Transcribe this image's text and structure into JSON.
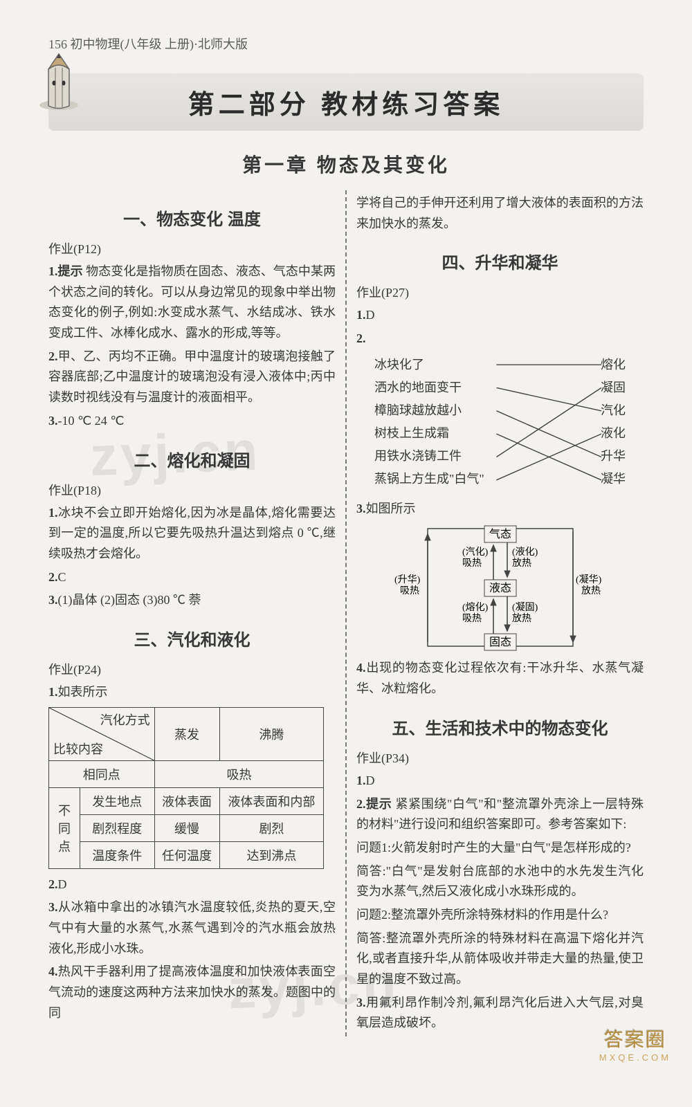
{
  "header": "156 初中物理(八年级 上册)·北师大版",
  "part_banner": "第二部分 教材练习答案",
  "chapter_title": "第一章 物态及其变化",
  "banner_icon_pencil_color": "#c2a77a",
  "banner_icon_body_color": "#ded9cf",
  "left": {
    "s1": {
      "title": "一、物态变化 温度",
      "hw": "作业(P12)",
      "q1_lead": "1.提示",
      "q1": " 物态变化是指物质在固态、液态、气态中某两个状态之间的转化。可以从身边常见的现象中举出物态变化的例子,例如:水变成水蒸气、水结成冰、铁水变成工件、冰棒化成水、露水的形成,等等。",
      "q2_lead": "2.",
      "q2": "甲、乙、丙均不正确。甲中温度计的玻璃泡接触了容器底部;乙中温度计的玻璃泡没有浸入液体中;丙中读数时视线没有与温度计的液面相平。",
      "q3_lead": "3.",
      "q3": "-10 ℃ 24 ℃"
    },
    "s2": {
      "title": "二、熔化和凝固",
      "hw": "作业(P18)",
      "q1_lead": "1.",
      "q1": "冰块不会立即开始熔化,因为冰是晶体,熔化需要达到一定的温度,所以它要先吸热升温达到熔点 0 ℃,继续吸热才会熔化。",
      "q2_lead": "2.",
      "q2": "C",
      "q3_lead": "3.",
      "q3": "(1)晶体 (2)固态 (3)80 ℃ 萘"
    },
    "s3": {
      "title": "三、汽化和液化",
      "hw": "作业(P24)",
      "q1_lead": "1.",
      "q1": "如表所示",
      "table": {
        "diag_top": "汽化方式",
        "diag_bot": "比较内容",
        "c1": "蒸发",
        "c2": "沸腾",
        "r1": "相同点",
        "r1v": "吸热",
        "dif": "不同点",
        "r2": "发生地点",
        "r2a": "液体表面",
        "r2b": "液体表面和内部",
        "r3": "剧烈程度",
        "r3a": "缓慢",
        "r3b": "剧烈",
        "r4": "温度条件",
        "r4a": "任何温度",
        "r4b": "达到沸点"
      },
      "q2_lead": "2.",
      "q2": "D",
      "q3_lead": "3.",
      "q3": "从冰箱中拿出的冰镇汽水温度较低,炎热的夏天,空气中有大量的水蒸气,水蒸气遇到冷的汽水瓶会放热液化,形成小水珠。",
      "q4_lead": "4.",
      "q4": "热风干手器利用了提高液体温度和加快液体表面空气流动的速度这两种方法来加快水的蒸发。题图中的同"
    }
  },
  "right": {
    "cont": "学将自己的手伸开还利用了增大液体的表面积的方法来加快水的蒸发。",
    "s4": {
      "title": "四、升华和凝华",
      "hw": "作业(P27)",
      "q1_lead": "1.",
      "q1": "D",
      "q2_lead": "2.",
      "match_left": [
        "冰块化了",
        "洒水的地面变干",
        "樟脑球越放越小",
        "树枝上生成霜",
        "用铁水浇铸工件",
        "蒸锅上方生成\"白气\""
      ],
      "match_right": [
        "熔化",
        "凝固",
        "汽化",
        "液化",
        "升华",
        "凝华"
      ],
      "match_lines": [
        {
          "l": 0,
          "r": 0
        },
        {
          "l": 1,
          "r": 2
        },
        {
          "l": 2,
          "r": 4
        },
        {
          "l": 3,
          "r": 5
        },
        {
          "l": 4,
          "r": 1
        },
        {
          "l": 5,
          "r": 3
        }
      ],
      "q3_lead": "3.",
      "q3": "如图所示",
      "diagram": {
        "gas": "气态",
        "liquid": "液态",
        "solid": "固态",
        "vaporize": "(汽化)",
        "liquefy": "(液化)",
        "melt": "(熔化)",
        "freeze": "(凝固)",
        "sublim": "(升华)",
        "deposit": "(凝华)",
        "absorb": "吸热",
        "release": "放热"
      },
      "q4_lead": "4.",
      "q4": "出现的物态变化过程依次有:干冰升华、水蒸气凝华、冰粒熔化。"
    },
    "s5": {
      "title": "五、生活和技术中的物态变化",
      "hw": "作业(P34)",
      "q1_lead": "1.",
      "q1": "D",
      "q2_lead": "2.提示",
      "q2": " 紧紧围绕\"白气\"和\"整流罩外壳涂上一层特殊的材料\"进行设问和组织答案即可。参考答案如下:",
      "q2a": "问题1:火箭发射时产生的大量\"白气\"是怎样形成的?",
      "q2b": "简答:\"白气\"是发射台底部的水池中的水先发生汽化变为水蒸气,然后又液化成小水珠形成的。",
      "q2c": "问题2:整流罩外壳所涂特殊材料的作用是什么?",
      "q2d": "简答:整流罩外壳所涂的特殊材料在高温下熔化并汽化,或者直接升华,从箭体吸收并带走大量的热量,使卫星的温度不致过高。",
      "q3_lead": "3.",
      "q3": "用氟利昂作制冷剂,氟利昂汽化后进入大气层,对臭氧层造成破坏。"
    }
  },
  "badge": {
    "b1": "答案圈",
    "b2": "MXQE.COM"
  },
  "watermarks": [
    "zyj.cn",
    "zyj.cn"
  ],
  "colors": {
    "text": "#383838",
    "bg": "#f4f2ef",
    "banner_start": "#e8e6e3",
    "banner_end": "#dcdad6",
    "line": "#444444",
    "dash": "#777777",
    "badge_color": "#b58b3f"
  }
}
